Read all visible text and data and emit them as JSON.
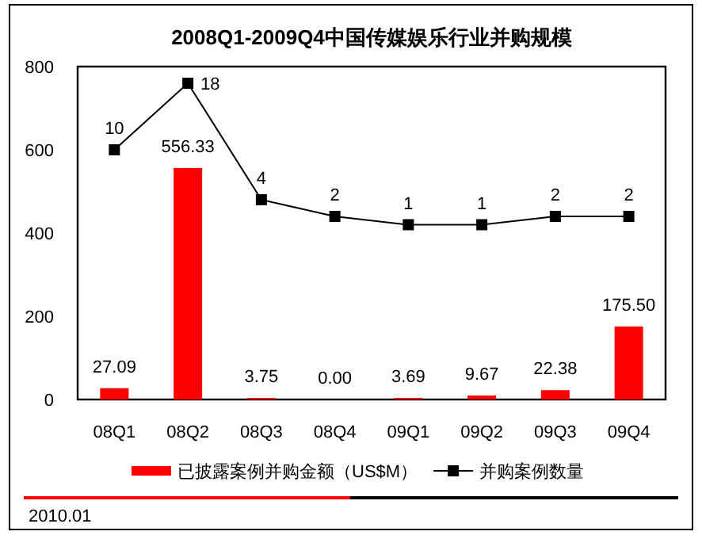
{
  "chart_data": {
    "type": "bar",
    "title": "2008Q1-2009Q4中国传媒娱乐行业并购规模",
    "categories": [
      "08Q1",
      "08Q2",
      "08Q3",
      "08Q4",
      "09Q1",
      "09Q2",
      "09Q3",
      "09Q4"
    ],
    "series": [
      {
        "name": "已披露案例并购金额（US$M）",
        "color": "#ff0000",
        "values": [
          27.09,
          556.33,
          3.75,
          0.0,
          3.69,
          9.67,
          22.38,
          175.5
        ],
        "value_labels": [
          "27.09",
          "556.33",
          "3.75",
          "0.00",
          "3.69",
          "9.67",
          "22.38",
          "175.50"
        ]
      },
      {
        "name": "并购案例数量",
        "type": "line",
        "axis": "y2",
        "color": "#000000",
        "marker": "square",
        "values": [
          10,
          18,
          4,
          2,
          1,
          1,
          2,
          2
        ],
        "value_labels": [
          "10",
          "18",
          "4",
          "2",
          "1",
          "1",
          "2",
          "2"
        ]
      }
    ],
    "ylim": [
      0,
      800
    ],
    "yticks": [
      0,
      200,
      400,
      600,
      800
    ],
    "y2lim": [
      -20,
      20
    ],
    "grid": false,
    "legend": "bottom",
    "annotations": [
      "2010.01"
    ]
  }
}
